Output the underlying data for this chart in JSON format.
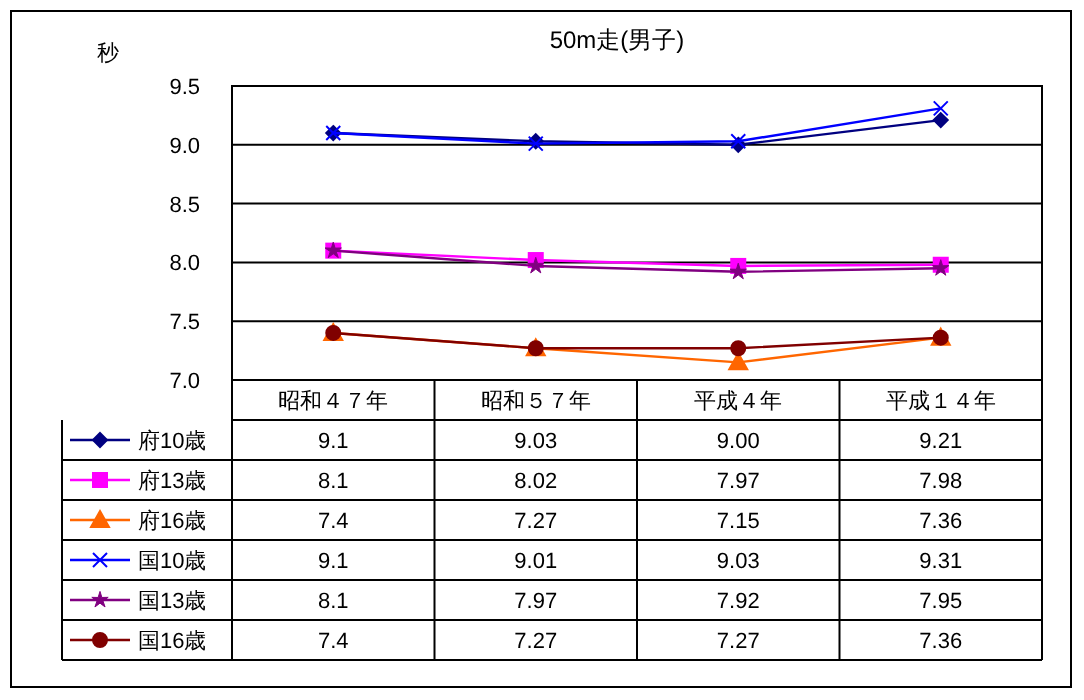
{
  "chart_data": {
    "type": "line",
    "title": "50m走(男子)",
    "ylabel": "秒",
    "categories": [
      "昭和４７年",
      "昭和５７年",
      "平成４年",
      "平成１４年"
    ],
    "ylim": [
      7.0,
      9.5
    ],
    "yticks": [
      {
        "value": 7.0,
        "label": "7.0"
      },
      {
        "value": 7.5,
        "label": "7.5"
      },
      {
        "value": 8.0,
        "label": "8.0"
      },
      {
        "value": 8.5,
        "label": "8.5"
      },
      {
        "value": 9.0,
        "label": "9.0"
      },
      {
        "value": 9.5,
        "label": "9.5"
      }
    ],
    "grid": "y",
    "legend": "bottom left",
    "line_style": "solid",
    "series": [
      {
        "name": "府10歳",
        "color": "#000080",
        "marker": "diamond",
        "values": [
          9.1,
          9.03,
          9.0,
          9.21
        ],
        "value_labels": [
          "9.1",
          "9.03",
          "9.00",
          "9.21"
        ]
      },
      {
        "name": "府13歳",
        "color": "#ff00ff",
        "marker": "square",
        "values": [
          8.1,
          8.02,
          7.97,
          7.98
        ],
        "value_labels": [
          "8.1",
          "8.02",
          "7.97",
          "7.98"
        ]
      },
      {
        "name": "府16歳",
        "color": "#ff6600",
        "marker": "triangle",
        "values": [
          7.4,
          7.27,
          7.15,
          7.36
        ],
        "value_labels": [
          "7.4",
          "7.27",
          "7.15",
          "7.36"
        ]
      },
      {
        "name": "国10歳",
        "color": "#0000ff",
        "marker": "cross",
        "values": [
          9.1,
          9.01,
          9.03,
          9.31
        ],
        "value_labels": [
          "9.1",
          "9.01",
          "9.03",
          "9.31"
        ]
      },
      {
        "name": "国13歳",
        "color": "#800080",
        "marker": "star",
        "values": [
          8.1,
          7.97,
          7.92,
          7.95
        ],
        "value_labels": [
          "8.1",
          "7.97",
          "7.92",
          "7.95"
        ]
      },
      {
        "name": "国16歳",
        "color": "#800000",
        "marker": "circle",
        "values": [
          7.4,
          7.27,
          7.27,
          7.36
        ],
        "value_labels": [
          "7.4",
          "7.27",
          "7.27",
          "7.36"
        ]
      }
    ]
  }
}
